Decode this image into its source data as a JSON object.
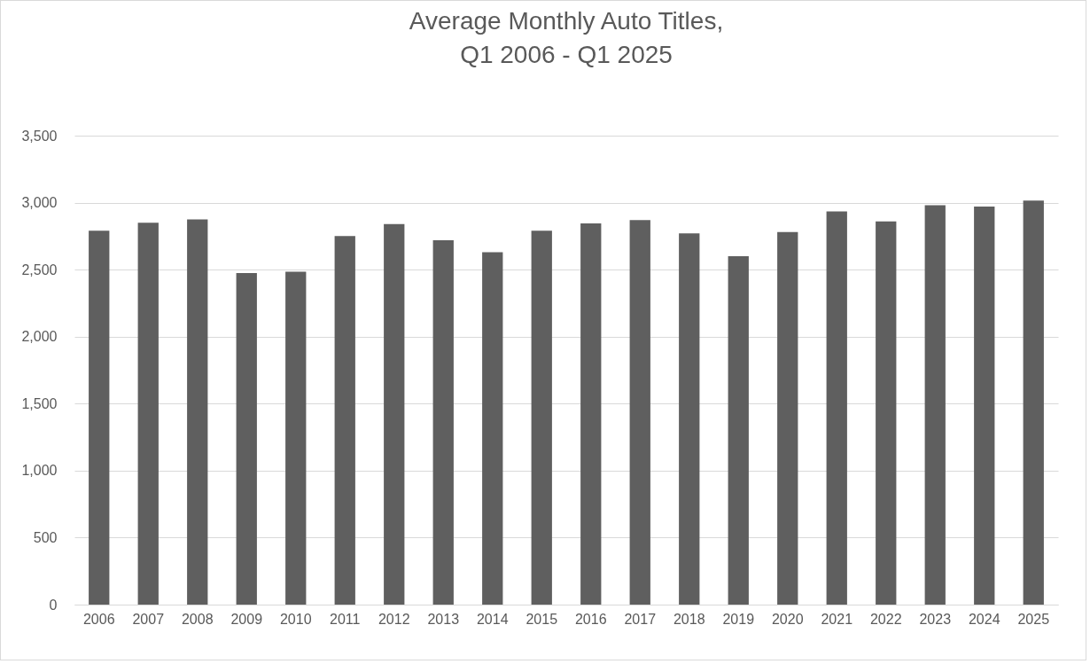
{
  "chart_data": {
    "type": "bar",
    "title": [
      "Average Monthly Auto Titles,",
      "Q1 2006 - Q1 2025"
    ],
    "categories": [
      "2006",
      "2007",
      "2008",
      "2009",
      "2010",
      "2011",
      "2012",
      "2013",
      "2014",
      "2015",
      "2016",
      "2017",
      "2018",
      "2019",
      "2020",
      "2021",
      "2022",
      "2023",
      "2024",
      "2025"
    ],
    "values": [
      2790,
      2850,
      2875,
      2475,
      2485,
      2750,
      2840,
      2720,
      2630,
      2790,
      2845,
      2870,
      2770,
      2600,
      2780,
      2935,
      2860,
      2980,
      2970,
      3015
    ],
    "color": "#5f5f5f",
    "ylim": [
      0,
      3500
    ],
    "yticks": [
      0,
      {
        "value": 500,
        "label": "500"
      },
      {
        "value": 1000,
        "label": "1,000"
      },
      {
        "value": 1500,
        "label": "1,500"
      },
      {
        "value": 2000,
        "label": "2,000"
      },
      {
        "value": 2500,
        "label": "2,500"
      },
      {
        "value": 3000,
        "label": "3,000"
      },
      {
        "value": 3500,
        "label": "3,500"
      }
    ],
    "grid": "y"
  }
}
